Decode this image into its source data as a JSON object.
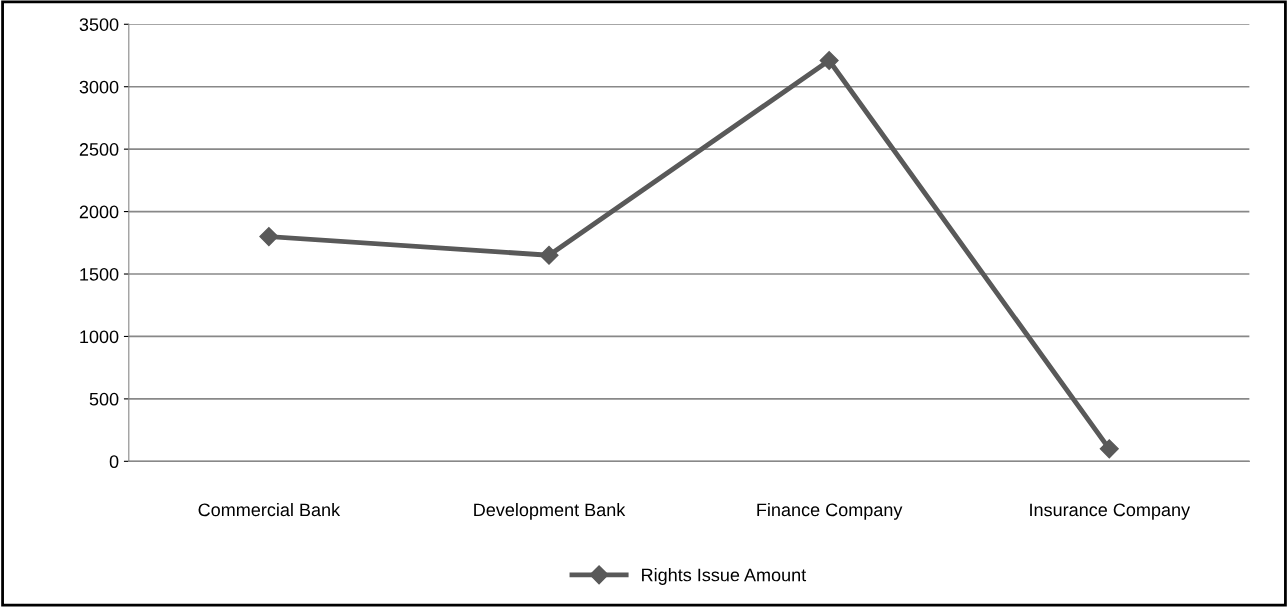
{
  "chart_data": {
    "type": "line",
    "categories": [
      "Commercial Bank",
      "Development Bank",
      "Finance Company",
      "Insurance Company"
    ],
    "series": [
      {
        "name": "Rights Issue Amount",
        "color": "#595959",
        "values": [
          1800,
          1650,
          3210,
          100
        ]
      }
    ],
    "ylim": [
      0,
      3500
    ],
    "yticks": [
      0,
      500,
      1000,
      1500,
      2000,
      2500,
      3000,
      3500
    ],
    "grid": "y",
    "legend": "bottom",
    "marker": "diamond",
    "line_style": "solid"
  }
}
